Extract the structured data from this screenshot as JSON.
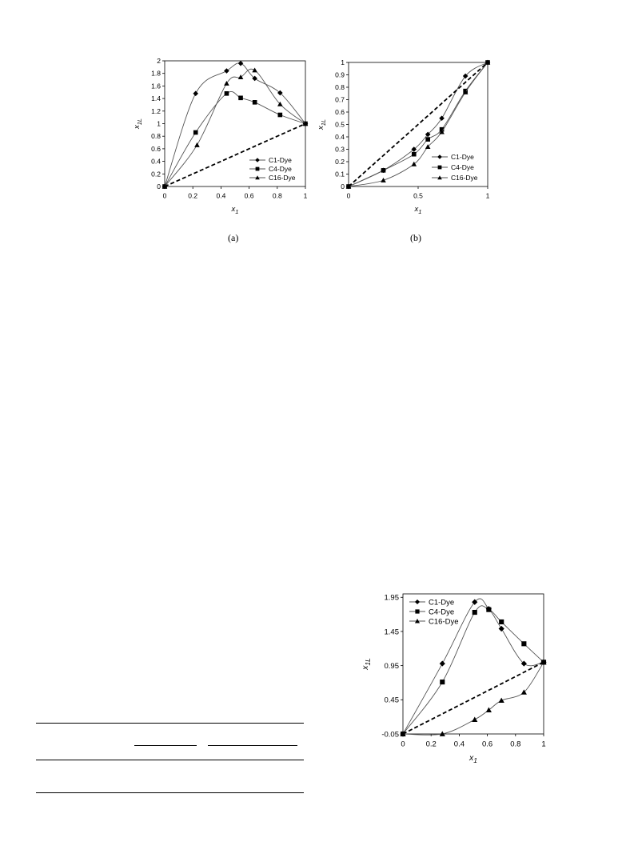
{
  "chart_data": [
    {
      "type": "scatter",
      "panel": "a",
      "caption": "(a)",
      "xlabel": "x1",
      "ylabel": "x1L",
      "xlim": [
        0,
        1
      ],
      "ylim": [
        0,
        2
      ],
      "xticks": [
        "0",
        "0.2",
        "0.4",
        "0.6",
        "0.8",
        "1"
      ],
      "yticks": [
        "0",
        "0.2",
        "0.4",
        "0.6",
        "0.8",
        "1",
        "1.2",
        "1.4",
        "1.6",
        "1.8",
        "2"
      ],
      "grid": false,
      "legend_position": "bottom-right",
      "series": [
        {
          "name": "C1-Dye",
          "marker": "diamond",
          "x": [
            0,
            0.22,
            0.44,
            0.54,
            0.64,
            0.82,
            1
          ],
          "y": [
            0,
            1.48,
            1.84,
            1.96,
            1.72,
            1.49,
            1.0
          ]
        },
        {
          "name": "C4-Dye",
          "marker": "square",
          "x": [
            0,
            0.22,
            0.44,
            0.54,
            0.64,
            0.82,
            1
          ],
          "y": [
            0,
            0.86,
            1.48,
            1.41,
            1.34,
            1.14,
            1.0
          ]
        },
        {
          "name": "C16-Dye",
          "marker": "triangle",
          "x": [
            0,
            0.23,
            0.44,
            0.54,
            0.64,
            0.82,
            1
          ],
          "y": [
            0,
            0.66,
            1.64,
            1.74,
            1.85,
            1.31,
            1.0
          ]
        },
        {
          "name": "",
          "style": "dashed",
          "x": [
            0,
            1
          ],
          "y": [
            0,
            1
          ]
        }
      ]
    },
    {
      "type": "scatter",
      "panel": "b",
      "caption": "(b)",
      "xlabel": "x1",
      "ylabel": "x1L",
      "xlim": [
        0,
        1
      ],
      "ylim": [
        0,
        1
      ],
      "xticks": [
        "0",
        "0.5",
        "1"
      ],
      "yticks": [
        "0",
        "0.1",
        "0.2",
        "0.3",
        "0.4",
        "0.5",
        "0.6",
        "0.7",
        "0.8",
        "0.9",
        "1"
      ],
      "grid": false,
      "legend_position": "bottom-right",
      "series": [
        {
          "name": "C1-Dye",
          "marker": "diamond",
          "x": [
            0,
            0.25,
            0.47,
            0.57,
            0.67,
            0.84,
            1
          ],
          "y": [
            0,
            0.13,
            0.3,
            0.42,
            0.55,
            0.89,
            1.0
          ]
        },
        {
          "name": "C4-Dye",
          "marker": "square",
          "x": [
            0,
            0.25,
            0.47,
            0.57,
            0.67,
            0.84,
            1
          ],
          "y": [
            0,
            0.13,
            0.26,
            0.38,
            0.46,
            0.77,
            1.0
          ]
        },
        {
          "name": "C16-Dye",
          "marker": "triangle",
          "x": [
            0,
            0.25,
            0.47,
            0.57,
            0.67,
            0.84,
            1
          ],
          "y": [
            0,
            0.05,
            0.18,
            0.32,
            0.44,
            0.76,
            1.0
          ]
        },
        {
          "name": "",
          "style": "dashed",
          "x": [
            0,
            1
          ],
          "y": [
            0,
            1
          ]
        }
      ]
    },
    {
      "type": "scatter",
      "panel": "c",
      "caption": "",
      "xlabel": "x1",
      "ylabel": "x1L",
      "xlim": [
        0,
        1
      ],
      "ylim": [
        -0.05,
        2.0
      ],
      "xticks": [
        "0",
        "0.2",
        "0.4",
        "0.6",
        "0.8",
        "1"
      ],
      "yticks": [
        "-0.05",
        "0.45",
        "0.95",
        "1.45",
        "1.95"
      ],
      "grid": false,
      "legend_position": "top-left",
      "series": [
        {
          "name": "C1-Dye",
          "marker": "diamond",
          "x": [
            0,
            0.28,
            0.51,
            0.61,
            0.7,
            0.86,
            1
          ],
          "y": [
            -0.05,
            0.98,
            1.88,
            1.78,
            1.49,
            0.98,
            1.0
          ]
        },
        {
          "name": "C4-Dye",
          "marker": "square",
          "x": [
            0,
            0.28,
            0.51,
            0.61,
            0.7,
            0.86,
            1
          ],
          "y": [
            -0.05,
            0.71,
            1.73,
            1.77,
            1.59,
            1.27,
            1.0
          ]
        },
        {
          "name": "C16-Dye",
          "marker": "triangle",
          "x": [
            0,
            0.28,
            0.51,
            0.61,
            0.7,
            0.86,
            1
          ],
          "y": [
            -0.05,
            -0.05,
            0.16,
            0.3,
            0.44,
            0.56,
            1.0
          ]
        },
        {
          "name": "",
          "style": "dashed",
          "x": [
            0,
            1
          ],
          "y": [
            -0.05,
            1.0
          ]
        }
      ]
    }
  ]
}
